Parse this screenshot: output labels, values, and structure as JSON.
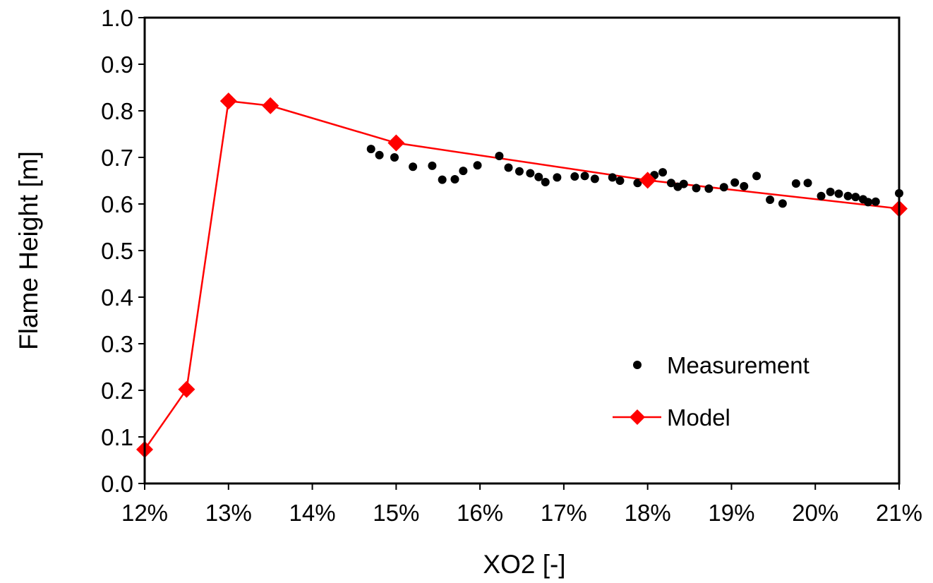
{
  "chart_data": {
    "type": "scatter",
    "xlabel": "XO2 [-]",
    "ylabel": "Flame Height [m]",
    "xlim": [
      0.12,
      0.21
    ],
    "ylim": [
      0.0,
      1.0
    ],
    "x_ticks": [
      0.12,
      0.13,
      0.14,
      0.15,
      0.16,
      0.17,
      0.18,
      0.19,
      0.2,
      0.21
    ],
    "x_tick_labels": [
      "12%",
      "13%",
      "14%",
      "15%",
      "16%",
      "17%",
      "18%",
      "19%",
      "20%",
      "21%"
    ],
    "y_ticks": [
      0.0,
      0.1,
      0.2,
      0.3,
      0.4,
      0.5,
      0.6,
      0.7,
      0.8,
      0.9,
      1.0
    ],
    "y_tick_labels": [
      "0.0",
      "0.1",
      "0.2",
      "0.3",
      "0.4",
      "0.5",
      "0.6",
      "0.7",
      "0.8",
      "0.9",
      "1.0"
    ],
    "grid": false,
    "legend_position": "bottom-right",
    "series": [
      {
        "name": "Measurement",
        "kind": "scatter",
        "color": "#000000",
        "marker": "circle",
        "points": [
          [
            0.147,
            0.718
          ],
          [
            0.148,
            0.705
          ],
          [
            0.1498,
            0.7
          ],
          [
            0.152,
            0.68
          ],
          [
            0.1543,
            0.682
          ],
          [
            0.1555,
            0.652
          ],
          [
            0.157,
            0.653
          ],
          [
            0.158,
            0.671
          ],
          [
            0.1597,
            0.683
          ],
          [
            0.1623,
            0.703
          ],
          [
            0.1634,
            0.678
          ],
          [
            0.1647,
            0.67
          ],
          [
            0.166,
            0.666
          ],
          [
            0.167,
            0.658
          ],
          [
            0.1678,
            0.647
          ],
          [
            0.1692,
            0.657
          ],
          [
            0.1713,
            0.659
          ],
          [
            0.1725,
            0.66
          ],
          [
            0.1737,
            0.654
          ],
          [
            0.1758,
            0.657
          ],
          [
            0.1767,
            0.65
          ],
          [
            0.1788,
            0.645
          ],
          [
            0.1808,
            0.662
          ],
          [
            0.1818,
            0.668
          ],
          [
            0.1828,
            0.645
          ],
          [
            0.1836,
            0.637
          ],
          [
            0.1843,
            0.643
          ],
          [
            0.1858,
            0.634
          ],
          [
            0.1873,
            0.633
          ],
          [
            0.1891,
            0.636
          ],
          [
            0.1904,
            0.646
          ],
          [
            0.1915,
            0.638
          ],
          [
            0.193,
            0.66
          ],
          [
            0.1946,
            0.609
          ],
          [
            0.1961,
            0.601
          ],
          [
            0.1977,
            0.644
          ],
          [
            0.1991,
            0.645
          ],
          [
            0.2007,
            0.617
          ],
          [
            0.2018,
            0.626
          ],
          [
            0.2028,
            0.622
          ],
          [
            0.2039,
            0.617
          ],
          [
            0.2048,
            0.615
          ],
          [
            0.2057,
            0.61
          ],
          [
            0.2063,
            0.604
          ],
          [
            0.2072,
            0.605
          ],
          [
            0.21,
            0.623
          ]
        ]
      },
      {
        "name": "Model",
        "kind": "line",
        "color": "#ff0000",
        "marker": "diamond",
        "points": [
          [
            0.12,
            0.073
          ],
          [
            0.125,
            0.202
          ],
          [
            0.13,
            0.821
          ],
          [
            0.135,
            0.811
          ],
          [
            0.15,
            0.731
          ],
          [
            0.18,
            0.651
          ],
          [
            0.21,
            0.59
          ]
        ]
      }
    ]
  }
}
